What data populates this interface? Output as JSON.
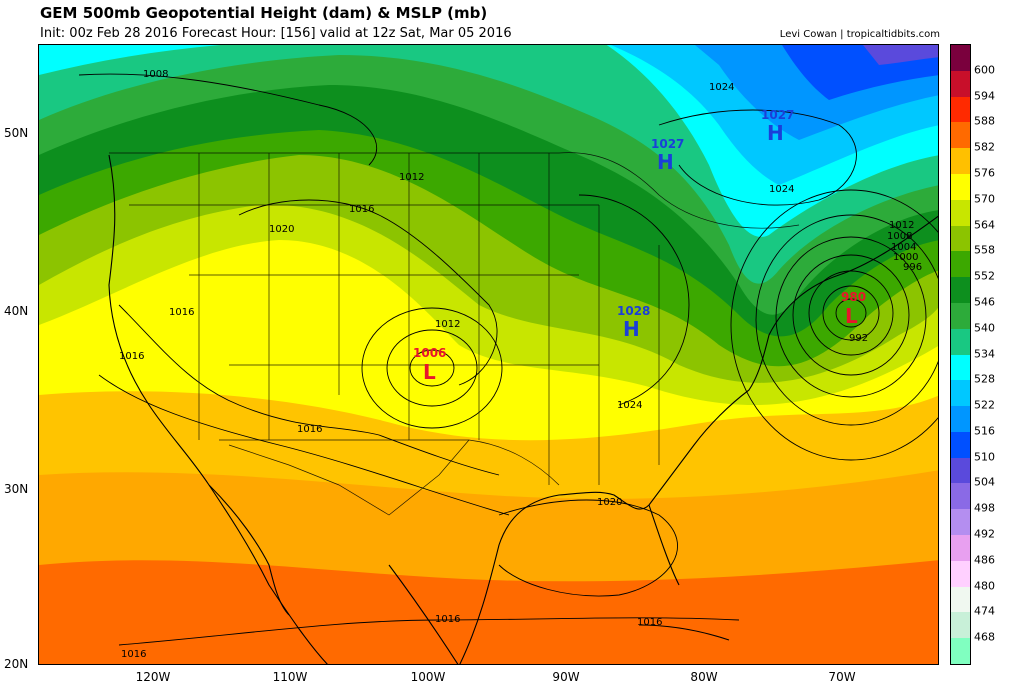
{
  "header": {
    "title": "GEM 500mb Geopotential Height (dam) & MSLP (mb)",
    "subtitle": "Init: 00z Feb 28 2016   Forecast Hour: [156]   valid at 12z Sat, Mar 05 2016",
    "credit": "Levi Cowan | tropicaltidbits.com"
  },
  "axes": {
    "lat_labels": [
      "50N",
      "40N",
      "30N",
      "20N"
    ],
    "lon_labels": [
      "120W",
      "110W",
      "100W",
      "90W",
      "80W",
      "70W"
    ]
  },
  "colorbar": {
    "labels": [
      "600",
      "594",
      "588",
      "582",
      "576",
      "570",
      "564",
      "558",
      "552",
      "546",
      "540",
      "534",
      "528",
      "522",
      "516",
      "510",
      "504",
      "498",
      "492",
      "486",
      "480",
      "474",
      "468"
    ],
    "colors": [
      "#7a003d",
      "#c80f2a",
      "#ff2a00",
      "#ff6a00",
      "#ffc000",
      "#ffff00",
      "#c8e600",
      "#8cc400",
      "#3ca800",
      "#0d8f1e",
      "#2dab3a",
      "#19c882",
      "#00ffff",
      "#00c8ff",
      "#0096ff",
      "#0050ff",
      "#5a4adc",
      "#8a6ae6",
      "#b48ef0",
      "#e8a0f0",
      "#ffd0ff",
      "#f0f8f0",
      "#c8f0d8",
      "#80ffc0"
    ]
  },
  "pressure_centers": [
    {
      "type": "H",
      "value": "1027",
      "color": "#1a3fd9"
    },
    {
      "type": "H",
      "value": "1027",
      "color": "#1a3fd9"
    },
    {
      "type": "H",
      "value": "1028",
      "color": "#1a3fd9"
    },
    {
      "type": "L",
      "value": "1006",
      "color": "#e8152b"
    },
    {
      "type": "L",
      "value": "980",
      "color": "#e8152b"
    }
  ],
  "isobar_labels": [
    "1008",
    "1012",
    "1016",
    "1020",
    "1016",
    "1016",
    "1016",
    "1012",
    "1024",
    "1024",
    "1024",
    "1020",
    "1016",
    "1016",
    "1016",
    "1012",
    "1008",
    "1004",
    "1000",
    "996",
    "992"
  ]
}
